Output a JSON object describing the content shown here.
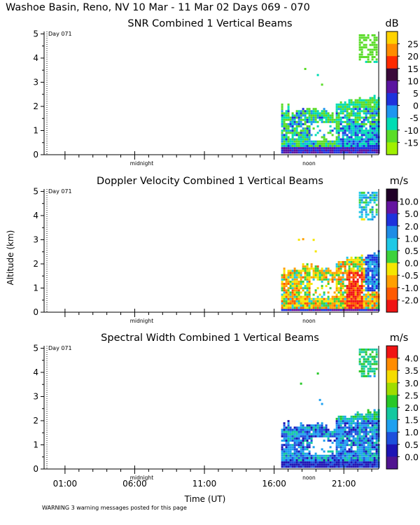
{
  "header": {
    "title": "Washoe Basin, Reno, NV  10 Mar - 11 Mar 02 Days 069 - 070"
  },
  "footer": {
    "warning": "WARNING  3 warning messages posted for this page"
  },
  "chart_data": [
    {
      "type": "heatmap",
      "title": "SNR Combined 1 Vertical Beams",
      "xlabel": "",
      "ylabel": "",
      "day_label": "Day 071",
      "ylim": [
        0,
        5.1
      ],
      "yticks": [
        0,
        1,
        2,
        3,
        4,
        5
      ],
      "xlim": [
        -0.5,
        23.5
      ],
      "inner_labels": [
        "midnight",
        "noon"
      ],
      "colorbar": {
        "unit": "dB",
        "labels": [
          "25",
          "20",
          "15",
          "10",
          "5",
          "0",
          "-5",
          "-10",
          "-15"
        ],
        "colors": [
          "#ffd200",
          "#ff8c00",
          "#ff2a00",
          "#3a0a3a",
          "#5a14a0",
          "#1e32dc",
          "#1e96f0",
          "#00dcb4",
          "#5adc28",
          "#a0f000"
        ]
      },
      "data_extent": {
        "start_hour": 16.5,
        "end_hour": 23.5,
        "max_altitude_km": 4.9
      }
    },
    {
      "type": "heatmap",
      "title": "Doppler Velocity Combined 1 Vertical Beams",
      "xlabel": "",
      "ylabel": "Altitude (km)",
      "day_label": "Day 071",
      "ylim": [
        0,
        5.1
      ],
      "yticks": [
        0,
        1,
        2,
        3,
        4,
        5
      ],
      "xlim": [
        -0.5,
        23.5
      ],
      "inner_labels": [
        "midnight",
        "noon"
      ],
      "colorbar": {
        "unit": "m/s",
        "labels": [
          "10.0",
          "5.0",
          "2.0",
          "1.0",
          "0.5",
          "0.0",
          "-0.5",
          "-1.0",
          "-2.0"
        ],
        "colors": [
          "#200028",
          "#6414a0",
          "#1e32dc",
          "#1e8ce6",
          "#1ec8e6",
          "#3cd23c",
          "#f5e600",
          "#ffa000",
          "#ff5a00",
          "#f01414"
        ]
      },
      "data_extent": {
        "start_hour": 16.5,
        "end_hour": 23.5,
        "max_altitude_km": 4.9
      }
    },
    {
      "type": "heatmap",
      "title": "Spectral Width Combined 1 Vertical Beams",
      "xlabel": "Time (UT)",
      "ylabel": "",
      "day_label": "Day 071",
      "ylim": [
        0,
        5.1
      ],
      "yticks": [
        0,
        1,
        2,
        3,
        4,
        5
      ],
      "xlim": [
        -0.5,
        23.5
      ],
      "inner_labels": [
        "midnight",
        "noon"
      ],
      "xtick_labels": [
        "01:00",
        "06:00",
        "11:00",
        "16:00",
        "21:00"
      ],
      "xtick_values": [
        1,
        6,
        11,
        16,
        21
      ],
      "colorbar": {
        "unit": "m/s",
        "labels": [
          "4.0",
          "3.5",
          "3.0",
          "2.5",
          "2.0",
          "1.5",
          "1.0",
          "0.5",
          "0.0"
        ],
        "colors": [
          "#f01414",
          "#ff8c00",
          "#f5dc00",
          "#a0dc00",
          "#28c828",
          "#14c8a0",
          "#1ea0f0",
          "#1e50dc",
          "#1e14b4",
          "#501490"
        ]
      },
      "data_extent": {
        "start_hour": 16.5,
        "end_hour": 23.5,
        "max_altitude_km": 4.9
      }
    }
  ]
}
